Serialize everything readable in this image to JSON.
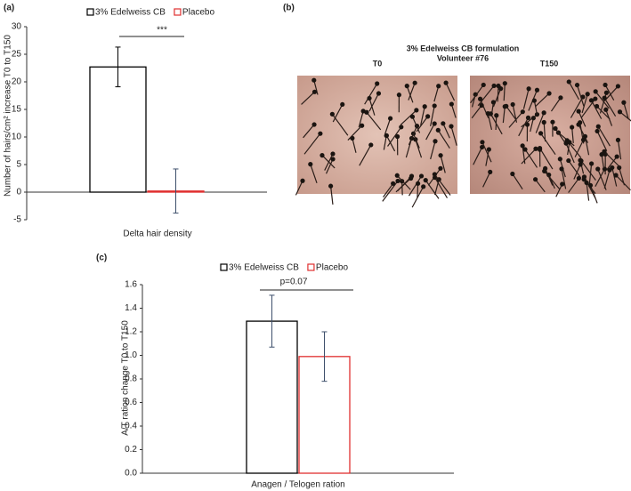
{
  "chart_data": [
    {
      "type": "bar",
      "panel_label": "(a)",
      "annotation": "***",
      "y_label": "Number of hairs/cm² increase T0 to T150",
      "x_label": "Delta hair density",
      "categories": [
        "Delta hair density"
      ],
      "series": [
        {
          "name": "3% Edelweiss CB",
          "color": "#000000",
          "error_color": "#000000",
          "values": [
            22.7
          ],
          "errors": [
            3.6
          ]
        },
        {
          "name": "Placebo",
          "color": "#e03030",
          "error_color": "#3d4f6b",
          "values": [
            0.2
          ],
          "errors": [
            4.0
          ]
        }
      ],
      "ylim": [
        -5,
        30
      ],
      "yticks": [
        -5,
        0,
        5,
        10,
        15,
        20,
        25,
        30
      ],
      "grid": false
    },
    {
      "type": "bar",
      "panel_label": "(c)",
      "annotation": "p=0.07",
      "y_label": "A/T ration change T0 to T150",
      "x_label": "Anagen / Telogen ration",
      "categories": [
        "Anagen / Telogen ration"
      ],
      "series": [
        {
          "name": "3% Edelweiss CB",
          "color": "#000000",
          "error_color": "#3d4f6b",
          "values": [
            1.29
          ],
          "errors": [
            0.22
          ]
        },
        {
          "name": "Placebo",
          "color": "#e03030",
          "error_color": "#3d4f6b",
          "values": [
            0.99
          ],
          "errors": [
            0.21
          ]
        }
      ],
      "ylim": [
        0,
        1.6
      ],
      "yticks": [
        {
          "value": 0,
          "label": "0.0"
        },
        0.2,
        0.4,
        0.6,
        0.8,
        {
          "value": 1,
          "label": "1.0"
        },
        1.2,
        1.4,
        1.6
      ],
      "grid": false
    }
  ],
  "photo_panel": {
    "label": "(b)",
    "title": "3% Edelweiss CB formulation",
    "subtitle": "Volunteer #76",
    "images": [
      "T0",
      "T150"
    ]
  }
}
